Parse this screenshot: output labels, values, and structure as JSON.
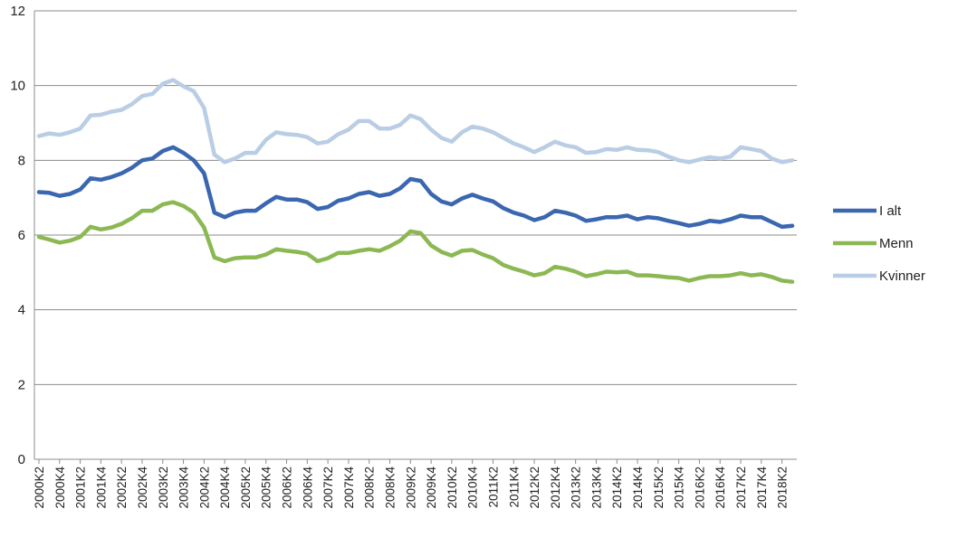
{
  "chart_data": {
    "type": "line",
    "title": "",
    "xlabel": "",
    "ylabel": "",
    "ylim": [
      0,
      12
    ],
    "yticks": [
      0,
      2,
      4,
      6,
      8,
      10,
      12
    ],
    "grid": true,
    "legend_position": "right",
    "x": [
      "2000K2",
      "2000K3",
      "2000K4",
      "2001K1",
      "2001K2",
      "2001K3",
      "2001K4",
      "2002K1",
      "2002K2",
      "2002K3",
      "2002K4",
      "2003K1",
      "2003K2",
      "2003K3",
      "2003K4",
      "2004K1",
      "2004K2",
      "2004K3",
      "2004K4",
      "2005K1",
      "2005K2",
      "2005K3",
      "2005K4",
      "2006K1",
      "2006K2",
      "2006K3",
      "2006K4",
      "2007K1",
      "2007K2",
      "2007K3",
      "2007K4",
      "2008K1",
      "2008K2",
      "2008K3",
      "2008K4",
      "2009K1",
      "2009K2",
      "2009K3",
      "2009K4",
      "2010K1",
      "2010K2",
      "2010K3",
      "2010K4",
      "2011K1",
      "2011K2",
      "2011K3",
      "2011K4",
      "2012K1",
      "2012K2",
      "2012K3",
      "2012K4",
      "2013K1",
      "2013K2",
      "2013K3",
      "2013K4",
      "2014K1",
      "2014K2",
      "2014K3",
      "2014K4",
      "2015K1",
      "2015K2",
      "2015K3",
      "2015K4",
      "2016K1",
      "2016K2",
      "2016K3",
      "2016K4",
      "2017K1",
      "2017K2",
      "2017K3",
      "2017K4",
      "2018K1",
      "2018K2",
      "2018K3"
    ],
    "tick_labels": [
      "2000K2",
      "2000K4",
      "2001K2",
      "2001K4",
      "2002K2",
      "2002K4",
      "2003K2",
      "2003K4",
      "2004K2",
      "2004K4",
      "2005K2",
      "2005K4",
      "2006K2",
      "2006K4",
      "2007K2",
      "2007K4",
      "2008K2",
      "2008K4",
      "2009K2",
      "2009K4",
      "2010K2",
      "2010K4",
      "2011K2",
      "2011K4",
      "2012K2",
      "2012K4",
      "2013K2",
      "2013K4",
      "2014K2",
      "2014K4",
      "2015K2",
      "2015K4",
      "2016K2",
      "2016K4",
      "2017K2",
      "2017K4",
      "2018K2"
    ],
    "series": [
      {
        "name": "Kvinner",
        "color": "#b9cde5",
        "values": [
          8.65,
          8.72,
          8.68,
          8.75,
          8.85,
          9.2,
          9.22,
          9.3,
          9.35,
          9.5,
          9.72,
          9.78,
          10.05,
          10.15,
          9.98,
          9.85,
          9.4,
          8.15,
          7.95,
          8.05,
          8.2,
          8.2,
          8.55,
          8.75,
          8.7,
          8.68,
          8.62,
          8.45,
          8.5,
          8.7,
          8.82,
          9.05,
          9.05,
          8.85,
          8.85,
          8.95,
          9.2,
          9.1,
          8.82,
          8.6,
          8.5,
          8.75,
          8.9,
          8.85,
          8.75,
          8.6,
          8.45,
          8.35,
          8.22,
          8.35,
          8.5,
          8.4,
          8.35,
          8.2,
          8.22,
          8.3,
          8.28,
          8.35,
          8.28,
          8.27,
          8.22,
          8.1,
          8.0,
          7.95,
          8.02,
          8.08,
          8.05,
          8.1,
          8.35,
          8.3,
          8.25,
          8.05,
          7.95,
          8.0
        ]
      },
      {
        "name": "I alt",
        "color": "#3a67b0",
        "values": [
          7.15,
          7.13,
          7.05,
          7.1,
          7.22,
          7.52,
          7.48,
          7.55,
          7.65,
          7.8,
          8.0,
          8.05,
          8.25,
          8.35,
          8.2,
          8.0,
          7.65,
          6.6,
          6.48,
          6.6,
          6.65,
          6.65,
          6.85,
          7.02,
          6.95,
          6.95,
          6.88,
          6.7,
          6.75,
          6.92,
          6.98,
          7.1,
          7.15,
          7.05,
          7.1,
          7.25,
          7.5,
          7.45,
          7.1,
          6.9,
          6.82,
          6.98,
          7.08,
          6.98,
          6.9,
          6.72,
          6.6,
          6.52,
          6.4,
          6.48,
          6.65,
          6.6,
          6.52,
          6.38,
          6.42,
          6.48,
          6.48,
          6.52,
          6.42,
          6.48,
          6.45,
          6.38,
          6.32,
          6.25,
          6.3,
          6.38,
          6.35,
          6.42,
          6.52,
          6.48,
          6.48,
          6.35,
          6.22,
          6.25
        ]
      },
      {
        "name": "Menn",
        "color": "#8cb854",
        "values": [
          5.95,
          5.88,
          5.8,
          5.85,
          5.95,
          6.22,
          6.15,
          6.2,
          6.3,
          6.45,
          6.65,
          6.65,
          6.82,
          6.88,
          6.78,
          6.6,
          6.2,
          5.4,
          5.3,
          5.38,
          5.4,
          5.4,
          5.48,
          5.62,
          5.58,
          5.55,
          5.5,
          5.3,
          5.38,
          5.52,
          5.52,
          5.58,
          5.62,
          5.58,
          5.7,
          5.85,
          6.1,
          6.05,
          5.72,
          5.55,
          5.45,
          5.58,
          5.6,
          5.48,
          5.38,
          5.2,
          5.1,
          5.02,
          4.92,
          4.98,
          5.15,
          5.1,
          5.02,
          4.9,
          4.95,
          5.02,
          5.0,
          5.02,
          4.92,
          4.92,
          4.9,
          4.87,
          4.85,
          4.78,
          4.85,
          4.9,
          4.9,
          4.92,
          4.98,
          4.92,
          4.95,
          4.88,
          4.78,
          4.75
        ]
      }
    ],
    "legend": [
      {
        "name": "I alt",
        "color": "#3a67b0"
      },
      {
        "name": "Menn",
        "color": "#8cb854"
      },
      {
        "name": "Kvinner",
        "color": "#b9cde5"
      }
    ]
  }
}
